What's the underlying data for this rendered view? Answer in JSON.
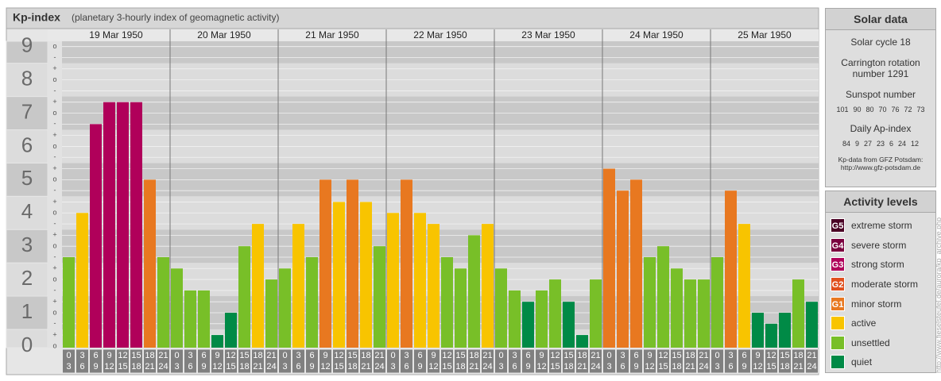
{
  "chart_data": {
    "type": "bar",
    "title": "Kp-index",
    "subtitle": "(planetary 3-hourly index of geomagnetic activity)",
    "days": [
      "19 Mar 1950",
      "20 Mar 1950",
      "21 Mar 1950",
      "22 Mar 1950",
      "23 Mar 1950",
      "24 Mar 1950",
      "25 Mar 1950"
    ],
    "hours_start": [
      0,
      3,
      6,
      9,
      12,
      15,
      18,
      21
    ],
    "hours_end": [
      3,
      6,
      9,
      12,
      15,
      18,
      21,
      24
    ],
    "values": [
      2.67,
      4,
      6.67,
      7.33,
      7.33,
      7.33,
      5,
      2.67,
      2.33,
      1.67,
      1.67,
      0.33,
      1,
      3,
      3.67,
      2,
      2.33,
      3.67,
      2.67,
      5,
      4.33,
      5,
      4.33,
      3,
      4,
      5,
      4,
      3.67,
      2.67,
      2.33,
      3.33,
      3.67,
      2.33,
      1.67,
      1.33,
      1.67,
      2,
      1.33,
      0.33,
      2,
      5.33,
      4.67,
      5,
      2.67,
      3,
      2.33,
      2,
      2,
      2.67,
      4.67,
      3.67,
      1,
      0.67,
      1,
      2,
      1.33
    ],
    "colors": [
      "#78bf28",
      "#f8c400",
      "#b0005a",
      "#b0005a",
      "#b0005a",
      "#b0005a",
      "#e87820",
      "#78bf28",
      "#78bf28",
      "#78bf28",
      "#78bf28",
      "#008a46",
      "#008a46",
      "#78bf28",
      "#f8c400",
      "#78bf28",
      "#78bf28",
      "#f8c400",
      "#78bf28",
      "#e87820",
      "#f8c400",
      "#e87820",
      "#f8c400",
      "#78bf28",
      "#f8c400",
      "#e87820",
      "#f8c400",
      "#f8c400",
      "#78bf28",
      "#78bf28",
      "#78bf28",
      "#f8c400",
      "#78bf28",
      "#78bf28",
      "#008a46",
      "#78bf28",
      "#78bf28",
      "#008a46",
      "#008a46",
      "#78bf28",
      "#e87820",
      "#e87820",
      "#e87820",
      "#78bf28",
      "#78bf28",
      "#78bf28",
      "#78bf28",
      "#78bf28",
      "#78bf28",
      "#e87820",
      "#f8c400",
      "#008a46",
      "#008a46",
      "#008a46",
      "#78bf28",
      "#008a46"
    ],
    "ylim": [
      -0.05,
      9.16
    ],
    "yticks": [
      0,
      1,
      2,
      3,
      4,
      5,
      6,
      7,
      8,
      9
    ],
    "minor_ticks": [
      {
        "value": 0,
        "label": "o"
      },
      {
        "value": 0.33,
        "label": "+"
      },
      {
        "value": 0.67,
        "label": "-"
      },
      {
        "value": 1,
        "label": "o"
      },
      {
        "value": 1.33,
        "label": "+"
      },
      {
        "value": 1.67,
        "label": "-"
      },
      {
        "value": 2,
        "label": "o"
      },
      {
        "value": 2.33,
        "label": "+"
      },
      {
        "value": 2.67,
        "label": "-"
      },
      {
        "value": 3,
        "label": "o"
      },
      {
        "value": 3.33,
        "label": "+"
      },
      {
        "value": 3.67,
        "label": "-"
      },
      {
        "value": 4,
        "label": "o"
      },
      {
        "value": 4.33,
        "label": "+"
      },
      {
        "value": 4.67,
        "label": "-"
      },
      {
        "value": 5,
        "label": "o"
      },
      {
        "value": 5.33,
        "label": "+"
      },
      {
        "value": 5.67,
        "label": "-"
      },
      {
        "value": 6,
        "label": "o"
      },
      {
        "value": 6.33,
        "label": "+"
      },
      {
        "value": 6.67,
        "label": "-"
      },
      {
        "value": 7,
        "label": "o"
      },
      {
        "value": 7.33,
        "label": "+"
      },
      {
        "value": 7.67,
        "label": "-"
      },
      {
        "value": 8,
        "label": "o"
      },
      {
        "value": 8.33,
        "label": "+"
      },
      {
        "value": 8.67,
        "label": "-"
      },
      {
        "value": 9,
        "label": "o"
      }
    ],
    "grid": true
  },
  "solar_data": {
    "title": "Solar data",
    "cycle": "Solar cycle 18",
    "carrington": "Carrington rotation number 1291",
    "sunspot_label": "Sunspot number",
    "sunspot_numbers": [
      101,
      90,
      80,
      70,
      76,
      72,
      73
    ],
    "ap_label": "Daily Ap-index",
    "ap_values": [
      84,
      9,
      27,
      23,
      6,
      24,
      12
    ],
    "source": "Kp-data from GFZ Potsdam:",
    "source_url": "http://www.gfz-potsdam.de"
  },
  "activity_levels": {
    "title": "Activity levels",
    "levels": [
      {
        "badge": "G5",
        "label": "extreme storm",
        "color": "#4a0024"
      },
      {
        "badge": "G4",
        "label": "severe storm",
        "color": "#7a003e"
      },
      {
        "badge": "G3",
        "label": "strong storm",
        "color": "#b0005a"
      },
      {
        "badge": "G2",
        "label": "moderate storm",
        "color": "#e0501e"
      },
      {
        "badge": "G1",
        "label": "minor storm",
        "color": "#e87820"
      },
      {
        "label": "active",
        "color": "#f8c400"
      },
      {
        "label": "unsettled",
        "color": "#78bf28"
      },
      {
        "label": "quiet",
        "color": "#008a46"
      }
    ]
  },
  "credit": "http://www.fieselsteufel.de/aurora/kp_archive.php"
}
